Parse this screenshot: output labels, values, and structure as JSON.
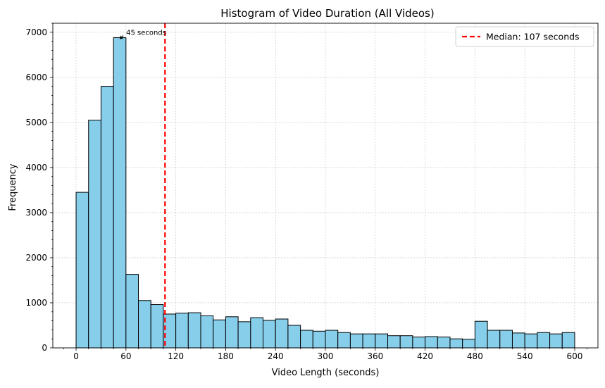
{
  "chart_data": {
    "type": "bar",
    "title": "Histogram of Video Duration (All Videos)",
    "xlabel": "Video Length (seconds)",
    "ylabel": "Frequency",
    "xlim": [
      -28,
      628
    ],
    "ylim": [
      0,
      7200
    ],
    "bin_width": 15,
    "bin_start": 0,
    "values": [
      3450,
      5050,
      5800,
      6880,
      1630,
      1050,
      960,
      750,
      770,
      780,
      710,
      620,
      690,
      580,
      670,
      610,
      640,
      500,
      390,
      370,
      390,
      340,
      310,
      310,
      310,
      270,
      270,
      240,
      250,
      240,
      200,
      190,
      590,
      390,
      390,
      330,
      310,
      340,
      310,
      340
    ],
    "xticks": [
      0,
      60,
      120,
      180,
      240,
      300,
      360,
      420,
      480,
      540,
      600
    ],
    "xtick_labels": [
      "0",
      "60",
      "120",
      "180",
      "240",
      "300",
      "360",
      "420",
      "480",
      "540",
      "600"
    ],
    "yticks": [
      0,
      1000,
      2000,
      3000,
      4000,
      5000,
      6000,
      7000
    ],
    "ytick_labels": [
      "0",
      "1000",
      "2000",
      "3000",
      "4000",
      "5000",
      "6000",
      "7000"
    ],
    "grid": true,
    "bar_color": "#87ceeb",
    "bar_edge_color": "#000000",
    "median": {
      "value": 107,
      "label": "Median: 107 seconds",
      "color": "#ff0000"
    },
    "annotation": {
      "text": "45 seconds",
      "x": 45,
      "y": 6880
    },
    "legend": {
      "placement": "top-right"
    }
  }
}
